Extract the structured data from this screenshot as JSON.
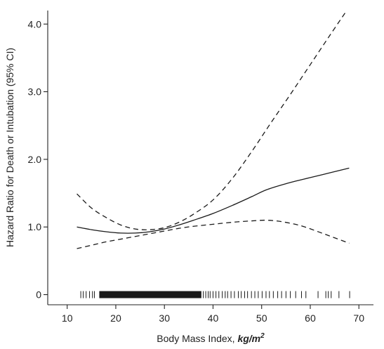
{
  "chart_data": {
    "type": "line",
    "title": "",
    "xlabel": "Body Mass Index, ",
    "xlabel_unit": "kg/m",
    "xlabel_unit_sup": "2",
    "ylabel": "Hazard Ratio for Death or Intubation (95% CI)",
    "xlim": [
      6,
      73
    ],
    "ylim": [
      -0.15,
      4.2
    ],
    "x_ticks": [
      10,
      20,
      30,
      40,
      50,
      60,
      70
    ],
    "x_tick_labels": [
      "10",
      "20",
      "30",
      "40",
      "50",
      "60",
      "70"
    ],
    "y_ticks": [
      0,
      1,
      2,
      3,
      4
    ],
    "y_tick_labels": [
      "0",
      "1.0",
      "2.0",
      "3.0",
      "4.0"
    ],
    "grid": false,
    "legend": "none",
    "series": [
      {
        "style": "solid",
        "color": "#1a1a1a",
        "x": [
          12,
          15,
          18,
          21,
          24,
          27,
          30,
          33,
          36,
          40,
          44,
          48,
          51,
          55,
          60,
          64,
          68
        ],
        "y": [
          1.0,
          0.96,
          0.93,
          0.91,
          0.91,
          0.93,
          0.97,
          1.03,
          1.1,
          1.2,
          1.32,
          1.45,
          1.55,
          1.64,
          1.73,
          1.8,
          1.87
        ]
      },
      {
        "style": "dashed",
        "color": "#1a1a1a",
        "x": [
          12,
          15,
          18,
          21,
          24,
          27,
          30,
          33,
          36,
          40,
          44,
          48,
          52,
          56,
          60,
          64,
          67.5
        ],
        "y": [
          1.49,
          1.28,
          1.14,
          1.03,
          0.97,
          0.96,
          0.99,
          1.07,
          1.19,
          1.4,
          1.72,
          2.12,
          2.55,
          2.97,
          3.4,
          3.83,
          4.2
        ]
      },
      {
        "style": "dashed",
        "color": "#1a1a1a",
        "x": [
          12,
          15,
          18,
          21,
          24,
          27,
          30,
          33,
          36,
          40,
          44,
          48,
          51,
          54,
          58,
          62,
          65,
          68
        ],
        "y": [
          0.68,
          0.73,
          0.78,
          0.82,
          0.86,
          0.9,
          0.94,
          0.98,
          1.01,
          1.04,
          1.07,
          1.09,
          1.1,
          1.08,
          1.02,
          0.92,
          0.84,
          0.76
        ]
      }
    ],
    "rug": {
      "sparse": [
        12.8,
        13.3,
        13.9,
        14.6,
        15.2,
        15.6,
        61.6,
        63.2,
        63.7,
        64.3,
        65.9,
        68.1
      ],
      "dense": [
        16.6,
        37.6
      ],
      "scattered": [
        38.0,
        38.5,
        39.0,
        39.4,
        40.0,
        40.6,
        41.2,
        41.9,
        42.5,
        43.0,
        43.7,
        44.4,
        45.2,
        45.8,
        46.5,
        47.1,
        47.9,
        48.6,
        49.3,
        50.1,
        50.9,
        51.6,
        52.4,
        53.3,
        54.1,
        55.0,
        55.9,
        57.0,
        58.2,
        59.1
      ]
    }
  }
}
